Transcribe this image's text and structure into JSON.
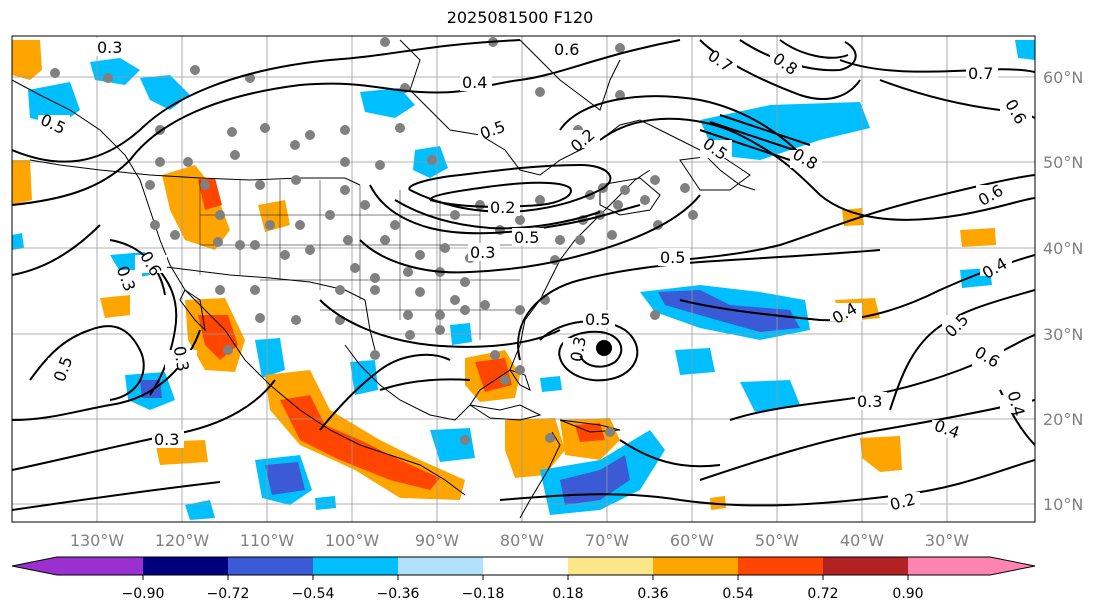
{
  "title": "2025081500 F120",
  "map": {
    "lon_ticks": [
      "130°W",
      "120°W",
      "110°W",
      "100°W",
      "90°W",
      "80°W",
      "70°W",
      "60°W",
      "50°W",
      "40°W",
      "30°W"
    ],
    "lat_ticks": [
      "60°N",
      "50°N",
      "40°N",
      "30°N",
      "20°N",
      "10°N"
    ],
    "contour_labels": [
      "0.3",
      "0.6",
      "0.4",
      "0.5",
      "0.2",
      "0.7",
      "0.8",
      "0.5",
      "0.8",
      "0.7",
      "0.6",
      "0.5",
      "0.4",
      "0.2",
      "0.5",
      "0.3",
      "0.6",
      "0.5",
      "0.4",
      "0.5",
      "0.6",
      "0.4",
      "0.5",
      "0.3",
      "0.4",
      "0.2",
      "0.3",
      "0.3",
      "0.5",
      "0.6",
      "0.3",
      "0.3"
    ]
  },
  "colorbar": {
    "colors": [
      "#9b30d0",
      "#00007f",
      "#3a5ad6",
      "#00bfff",
      "#b0e0fa",
      "#ffffff",
      "#fde68a",
      "#ffa500",
      "#ff4500",
      "#b22222",
      "#ff85b0"
    ],
    "ticks": [
      "−0.90",
      "−0.72",
      "−0.54",
      "−0.36",
      "−0.18",
      "0.18",
      "0.36",
      "0.54",
      "0.72",
      "0.90"
    ]
  },
  "legend_colors": {
    "lightblue": "#b0e0fa",
    "skyblue": "#00bfff",
    "royalblue": "#3a5ad6",
    "navy": "#00007f",
    "gold": "#fde68a",
    "orange": "#ffa500",
    "red": "#ff4500"
  }
}
